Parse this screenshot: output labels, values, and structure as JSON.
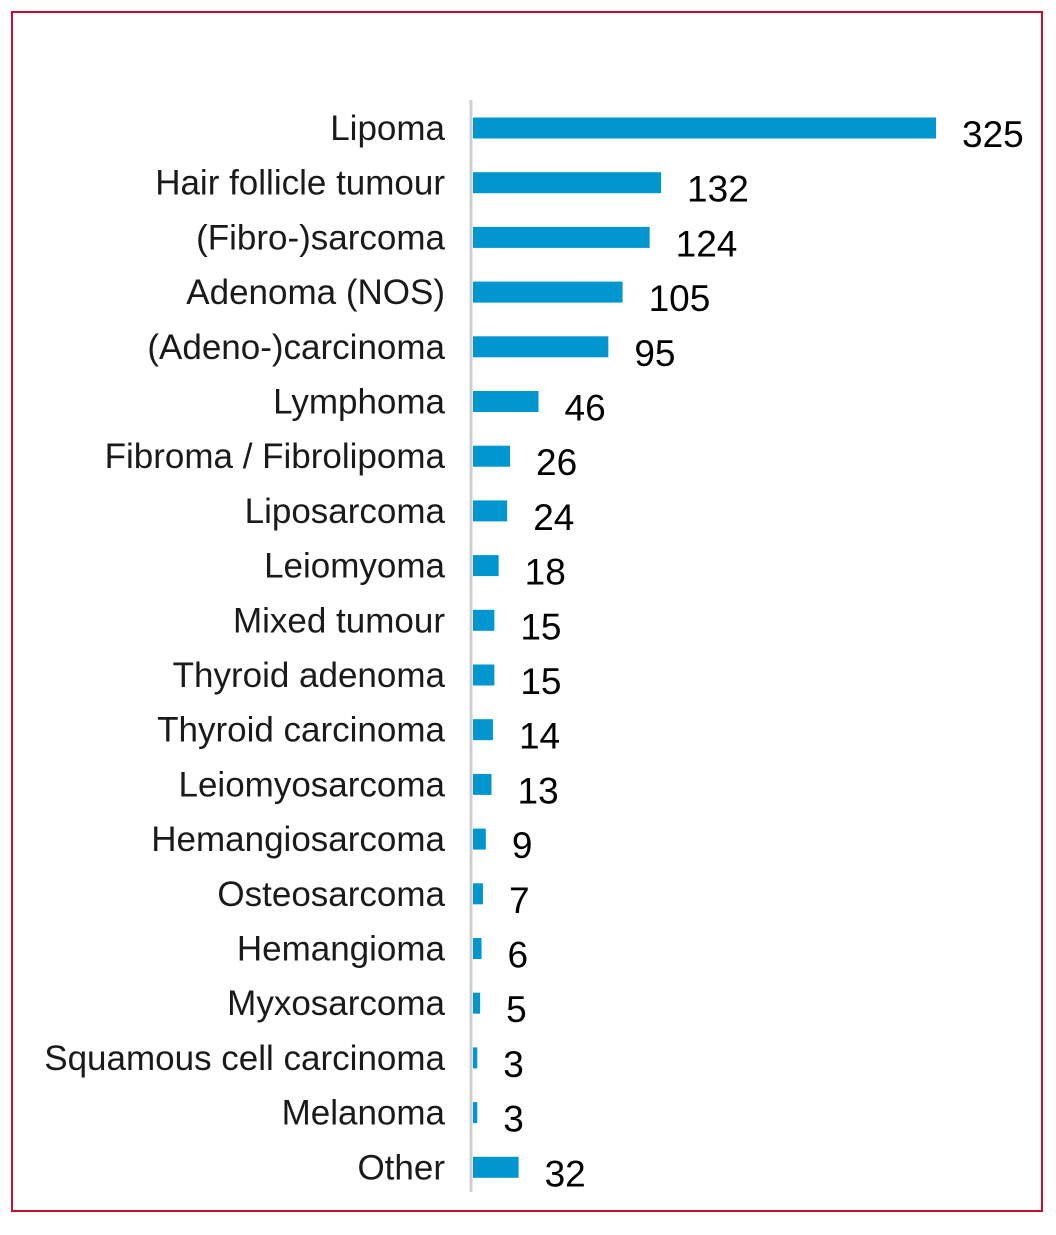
{
  "chart_data": {
    "type": "bar",
    "orientation": "horizontal",
    "title": "",
    "xlabel": "",
    "ylabel": "",
    "categories": [
      "Lipoma",
      "Hair follicle tumour",
      "(Fibro-)sarcoma",
      "Adenoma (NOS)",
      "(Adeno-)carcinoma",
      "Lymphoma",
      "Fibroma / Fibrolipoma",
      "Liposarcoma",
      "Leiomyoma",
      "Mixed tumour",
      "Thyroid adenoma",
      "Thyroid carcinoma",
      "Leiomyosarcoma",
      "Hemangiosarcoma",
      "Osteosarcoma",
      "Hemangioma",
      "Myxosarcoma",
      "Squamous cell carcinoma",
      "Melanoma",
      "Other"
    ],
    "values": [
      325,
      132,
      124,
      105,
      95,
      46,
      26,
      24,
      18,
      15,
      15,
      14,
      13,
      9,
      7,
      6,
      5,
      3,
      3,
      32
    ],
    "value_labels": [
      "325",
      "132",
      "124",
      "105",
      "95",
      "46",
      "26",
      "24",
      "18",
      "15",
      "15",
      "14",
      "13",
      "9",
      "7",
      "6",
      "5",
      "3",
      "3",
      "32"
    ],
    "xlim": [
      0,
      325
    ],
    "grid": false,
    "legend": "none",
    "colors": {
      "bar": "#0096d0",
      "axis": "#cfcfcf",
      "frame": "#c8102e"
    }
  }
}
